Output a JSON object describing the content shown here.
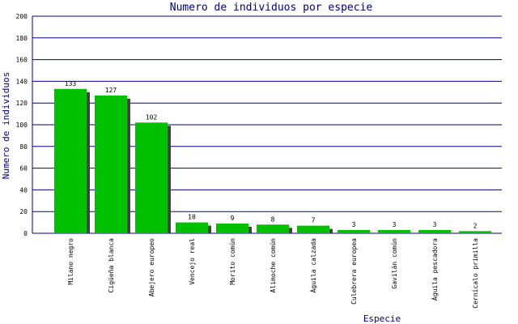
{
  "chart_data": {
    "type": "bar",
    "title": "Numero de individuos por especie",
    "x_label": "Especie",
    "y_label": "Numero de individuos",
    "categories": [
      "Milano negro",
      "Cigüeña blanca",
      "Abejero europeo",
      "Vencejo real",
      "Morito común",
      "Alimoche común",
      "Águila calzada",
      "Culebrera europea",
      "Gavilán común",
      "Águila pescadora",
      "Cernícalo primilla"
    ],
    "values": [
      133,
      127,
      102,
      10,
      9,
      8,
      7,
      3,
      3,
      3,
      2
    ],
    "color": "#00c000",
    "ylim": [
      0,
      200
    ],
    "yticks": [
      0,
      20,
      40,
      60,
      80,
      100,
      120,
      140,
      160,
      180,
      200
    ],
    "grid": true
  }
}
